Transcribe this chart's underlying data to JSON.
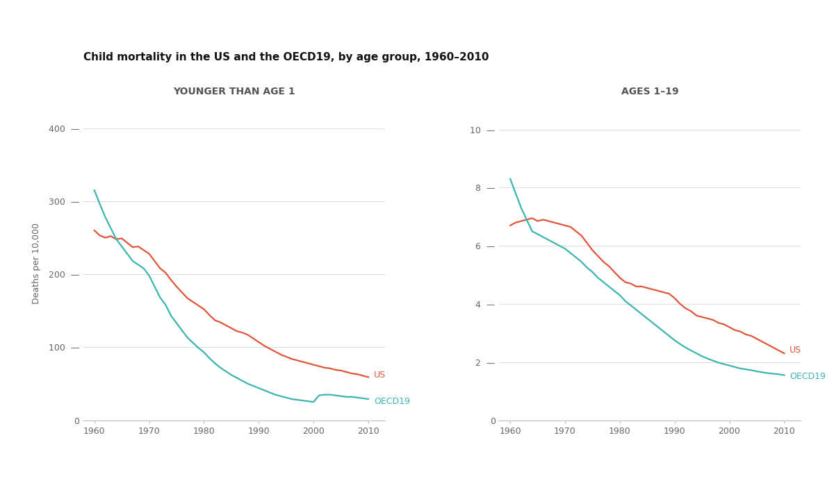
{
  "title": "Child mortality in the US and the OECD19, by age group, 1960–2010",
  "subtitle_left": "YOUNGER THAN AGE 1",
  "subtitle_right": "AGES 1–19",
  "ylabel": "Deaths per 10,000",
  "bg_color": "#ffffff",
  "us_color": "#e0553a",
  "oecd_color": "#3ab5b0",
  "panel1": {
    "years": [
      1960,
      1961,
      1962,
      1963,
      1964,
      1965,
      1966,
      1967,
      1968,
      1969,
      1970,
      1971,
      1972,
      1973,
      1974,
      1975,
      1976,
      1977,
      1978,
      1979,
      1980,
      1981,
      1982,
      1983,
      1984,
      1985,
      1986,
      1987,
      1988,
      1989,
      1990,
      1991,
      1992,
      1993,
      1994,
      1995,
      1996,
      1997,
      1998,
      1999,
      2000,
      2001,
      2002,
      2003,
      2004,
      2005,
      2006,
      2007,
      2008,
      2009,
      2010
    ],
    "us": [
      260,
      253,
      250,
      252,
      248,
      249,
      243,
      237,
      238,
      233,
      228,
      218,
      208,
      202,
      192,
      183,
      175,
      167,
      162,
      157,
      152,
      144,
      137,
      134,
      130,
      126,
      122,
      120,
      117,
      112,
      107,
      102,
      98,
      94,
      90,
      87,
      84,
      82,
      80,
      78,
      76,
      74,
      72,
      71,
      69,
      68,
      66,
      64,
      63,
      61,
      59
    ],
    "oecd": [
      315,
      296,
      278,
      263,
      248,
      238,
      228,
      218,
      213,
      208,
      198,
      183,
      168,
      158,
      143,
      133,
      123,
      113,
      106,
      99,
      93,
      85,
      78,
      72,
      67,
      62,
      58,
      54,
      50,
      47,
      44,
      41,
      38,
      35,
      33,
      31,
      29,
      28,
      27,
      26,
      25,
      34,
      35,
      35,
      34,
      33,
      32,
      32,
      31,
      30,
      29
    ],
    "ylim": [
      0,
      430
    ],
    "yticks": [
      0,
      100,
      200,
      300,
      400
    ],
    "xlim": [
      1958,
      2013
    ]
  },
  "panel2": {
    "years": [
      1960,
      1961,
      1962,
      1963,
      1964,
      1965,
      1966,
      1967,
      1968,
      1969,
      1970,
      1971,
      1972,
      1973,
      1974,
      1975,
      1976,
      1977,
      1978,
      1979,
      1980,
      1981,
      1982,
      1983,
      1984,
      1985,
      1986,
      1987,
      1988,
      1989,
      1990,
      1991,
      1992,
      1993,
      1994,
      1995,
      1996,
      1997,
      1998,
      1999,
      2000,
      2001,
      2002,
      2003,
      2004,
      2005,
      2006,
      2007,
      2008,
      2009,
      2010
    ],
    "us": [
      6.7,
      6.8,
      6.85,
      6.9,
      6.95,
      6.85,
      6.9,
      6.85,
      6.8,
      6.75,
      6.7,
      6.65,
      6.5,
      6.35,
      6.1,
      5.85,
      5.65,
      5.45,
      5.3,
      5.1,
      4.9,
      4.75,
      4.7,
      4.6,
      4.6,
      4.55,
      4.5,
      4.45,
      4.4,
      4.35,
      4.2,
      4.0,
      3.85,
      3.75,
      3.6,
      3.55,
      3.5,
      3.45,
      3.35,
      3.3,
      3.2,
      3.1,
      3.05,
      2.95,
      2.9,
      2.8,
      2.7,
      2.6,
      2.5,
      2.4,
      2.3
    ],
    "oecd": [
      8.3,
      7.8,
      7.3,
      6.9,
      6.5,
      6.4,
      6.3,
      6.2,
      6.1,
      6.0,
      5.9,
      5.75,
      5.6,
      5.45,
      5.25,
      5.1,
      4.9,
      4.75,
      4.6,
      4.45,
      4.3,
      4.1,
      3.95,
      3.8,
      3.65,
      3.5,
      3.35,
      3.2,
      3.05,
      2.9,
      2.75,
      2.62,
      2.5,
      2.4,
      2.3,
      2.2,
      2.12,
      2.05,
      1.98,
      1.93,
      1.88,
      1.83,
      1.78,
      1.75,
      1.72,
      1.68,
      1.65,
      1.62,
      1.6,
      1.58,
      1.55
    ],
    "ylim": [
      0,
      10.8
    ],
    "yticks": [
      0,
      2,
      4,
      6,
      8,
      10
    ],
    "xlim": [
      1958,
      2013
    ]
  },
  "xticks": [
    1960,
    1970,
    1980,
    1990,
    2000,
    2010
  ]
}
